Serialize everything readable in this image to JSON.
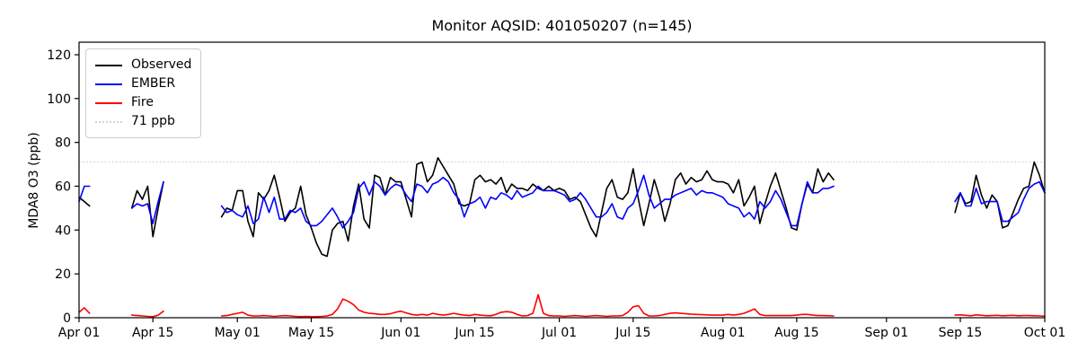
{
  "title": "Monitor AQSID: 401050207 (n=145)",
  "legend": {
    "items": [
      {
        "label": "Observed",
        "color": "#000000",
        "style": "solid"
      },
      {
        "label": "EMBER",
        "color": "#0000ff",
        "style": "solid"
      },
      {
        "label": "Fire",
        "color": "#ff0000",
        "style": "solid"
      },
      {
        "label": "71 ppb",
        "color": "#d3d3d3",
        "style": "dotted"
      }
    ]
  },
  "chart_data": {
    "type": "line",
    "title": "Monitor AQSID: 401050207 (n=145)",
    "n_points": 145,
    "xlabel": "",
    "ylabel": "MDA8 O3 (ppb)",
    "y_ticks": [
      0,
      20,
      40,
      60,
      80,
      100,
      120
    ],
    "ylim": [
      0,
      125
    ],
    "grid": false,
    "legend_position": "upper left",
    "x_axis": {
      "start": "Apr 01",
      "end": "Oct 01",
      "total_days": 183,
      "ticks": [
        {
          "day": 0,
          "label": "Apr 01"
        },
        {
          "day": 14,
          "label": "Apr 15"
        },
        {
          "day": 30,
          "label": "May 01"
        },
        {
          "day": 44,
          "label": "May 15"
        },
        {
          "day": 61,
          "label": "Jun 01"
        },
        {
          "day": 75,
          "label": "Jun 15"
        },
        {
          "day": 91,
          "label": "Jul 01"
        },
        {
          "day": 105,
          "label": "Jul 15"
        },
        {
          "day": 122,
          "label": "Aug 01"
        },
        {
          "day": 136,
          "label": "Aug 15"
        },
        {
          "day": 153,
          "label": "Sep 01"
        },
        {
          "day": 167,
          "label": "Sep 15"
        },
        {
          "day": 183,
          "label": "Oct 01"
        }
      ]
    },
    "threshold": {
      "value": 71,
      "label": "71 ppb",
      "color": "#d3d3d3",
      "style": "dotted"
    },
    "series": [
      {
        "name": "Observed",
        "color": "#000000",
        "segments": [
          {
            "start_day": 0,
            "start_date": "Apr 01",
            "values": [
              55,
              53,
              51
            ]
          },
          {
            "start_day": 10,
            "start_date": "Apr 11",
            "values": [
              50,
              58,
              54,
              60,
              37,
              50,
              62
            ]
          },
          {
            "start_day": 27,
            "start_date": "Apr 28",
            "values": [
              46,
              50,
              49,
              58,
              58,
              44,
              37,
              57,
              54,
              58,
              65,
              55,
              44,
              48,
              50,
              60,
              47,
              41,
              34,
              29,
              28,
              40,
              43,
              44,
              35,
              51,
              61,
              45,
              41,
              65,
              64,
              56,
              64,
              62,
              62,
              54,
              46,
              70,
              71,
              62,
              65,
              73,
              69,
              65,
              61,
              52,
              51,
              52,
              63,
              65,
              62,
              63,
              61,
              64,
              57,
              61,
              59,
              59,
              58,
              61,
              59,
              58,
              60,
              58,
              59,
              58,
              54,
              55,
              53,
              47,
              41,
              37,
              48,
              59,
              63,
              55,
              54,
              57,
              68,
              54,
              42,
              52,
              63,
              55,
              44,
              52,
              63,
              66,
              61,
              64,
              62,
              63,
              67,
              63,
              62,
              62,
              61,
              57,
              63,
              51,
              55,
              60,
              43,
              52,
              60,
              66,
              58,
              50,
              41,
              40,
              52,
              61,
              57,
              68,
              62,
              66,
              63
            ]
          },
          {
            "start_day": 166,
            "start_date": "Sep 14",
            "values": [
              48,
              57,
              52,
              53,
              65,
              56,
              50,
              56,
              53,
              41,
              42,
              48,
              54,
              59,
              60,
              71,
              65,
              57
            ]
          }
        ]
      },
      {
        "name": "EMBER",
        "color": "#0000ff",
        "segments": [
          {
            "start_day": 0,
            "start_date": "Apr 01",
            "values": [
              53,
              60,
              60
            ]
          },
          {
            "start_day": 10,
            "start_date": "Apr 11",
            "values": [
              50,
              52,
              51,
              52,
              43,
              53,
              62
            ]
          },
          {
            "start_day": 27,
            "start_date": "Apr 28",
            "values": [
              51,
              48,
              49,
              47,
              46,
              51,
              43,
              45,
              55,
              48,
              55,
              45,
              45,
              49,
              48,
              50,
              44,
              42,
              42,
              44,
              47,
              50,
              46,
              41,
              44,
              48,
              59,
              62,
              56,
              62,
              60,
              56,
              59,
              61,
              60,
              56,
              53,
              61,
              60,
              57,
              61,
              62,
              64,
              62,
              57,
              54,
              46,
              52,
              53,
              55,
              50,
              55,
              54,
              57,
              56,
              54,
              58,
              55,
              56,
              57,
              60,
              58,
              58,
              58,
              57,
              56,
              53,
              54,
              57,
              54,
              50,
              46,
              46,
              48,
              52,
              46,
              45,
              50,
              52,
              58,
              65,
              56,
              50,
              52,
              54,
              54,
              56,
              57,
              58,
              59,
              56,
              58,
              57,
              57,
              56,
              55,
              52,
              51,
              50,
              46,
              48,
              45,
              53,
              50,
              53,
              58,
              54,
              48,
              42,
              42,
              52,
              62,
              57,
              57,
              59,
              59,
              60
            ]
          },
          {
            "start_day": 166,
            "start_date": "Sep 14",
            "values": [
              53,
              57,
              51,
              51,
              59,
              52,
              53,
              53,
              53,
              44,
              44,
              46,
              48,
              54,
              59,
              61,
              62,
              57
            ]
          }
        ]
      },
      {
        "name": "Fire",
        "color": "#ff0000",
        "segments": [
          {
            "start_day": 0,
            "start_date": "Apr 01",
            "values": [
              2.5,
              4.5,
              2
            ]
          },
          {
            "start_day": 10,
            "start_date": "Apr 11",
            "values": [
              1.2,
              1,
              0.8,
              0.6,
              0.5,
              1.2,
              3
            ]
          },
          {
            "start_day": 27,
            "start_date": "Apr 28",
            "values": [
              0.8,
              1,
              1.5,
              2,
              2.5,
              1.2,
              0.8,
              0.8,
              1,
              0.8,
              0.6,
              0.8,
              1,
              0.8,
              0.6,
              0.5,
              0.6,
              0.5,
              0.5,
              0.6,
              0.8,
              1.5,
              4,
              8.5,
              7.5,
              6,
              3.5,
              2.5,
              2,
              1.8,
              1.5,
              1.5,
              1.8,
              2.5,
              3,
              2.2,
              1.5,
              1.2,
              1.5,
              1.2,
              2,
              1.5,
              1.2,
              1.5,
              2,
              1.5,
              1.2,
              1,
              1.5,
              1.2,
              1,
              0.9,
              1.5,
              2.5,
              2.8,
              2.5,
              1.5,
              0.8,
              1,
              2,
              10.5,
              2,
              1,
              0.8,
              0.8,
              0.6,
              0.8,
              1,
              0.8,
              0.6,
              0.8,
              1,
              0.8,
              0.6,
              0.8,
              0.8,
              1,
              2.5,
              5,
              5.5,
              2,
              0.8,
              0.8,
              1,
              1.5,
              2,
              2.2,
              2,
              1.8,
              1.6,
              1.5,
              1.4,
              1.3,
              1.2,
              1.2,
              1.2,
              1.5,
              1.2,
              1.5,
              2,
              3,
              4,
              1.5,
              1,
              1,
              1,
              1,
              1,
              1,
              1.2,
              1.5,
              1.5,
              1.2,
              1,
              1,
              0.9,
              0.8
            ]
          },
          {
            "start_day": 166,
            "start_date": "Sep 14",
            "values": [
              1.2,
              1.3,
              1.1,
              0.9,
              1.3,
              1.1,
              0.9,
              1,
              1.1,
              0.9,
              1,
              1.1,
              0.9,
              1,
              1,
              0.9,
              0.8,
              0.7
            ]
          }
        ]
      }
    ]
  }
}
